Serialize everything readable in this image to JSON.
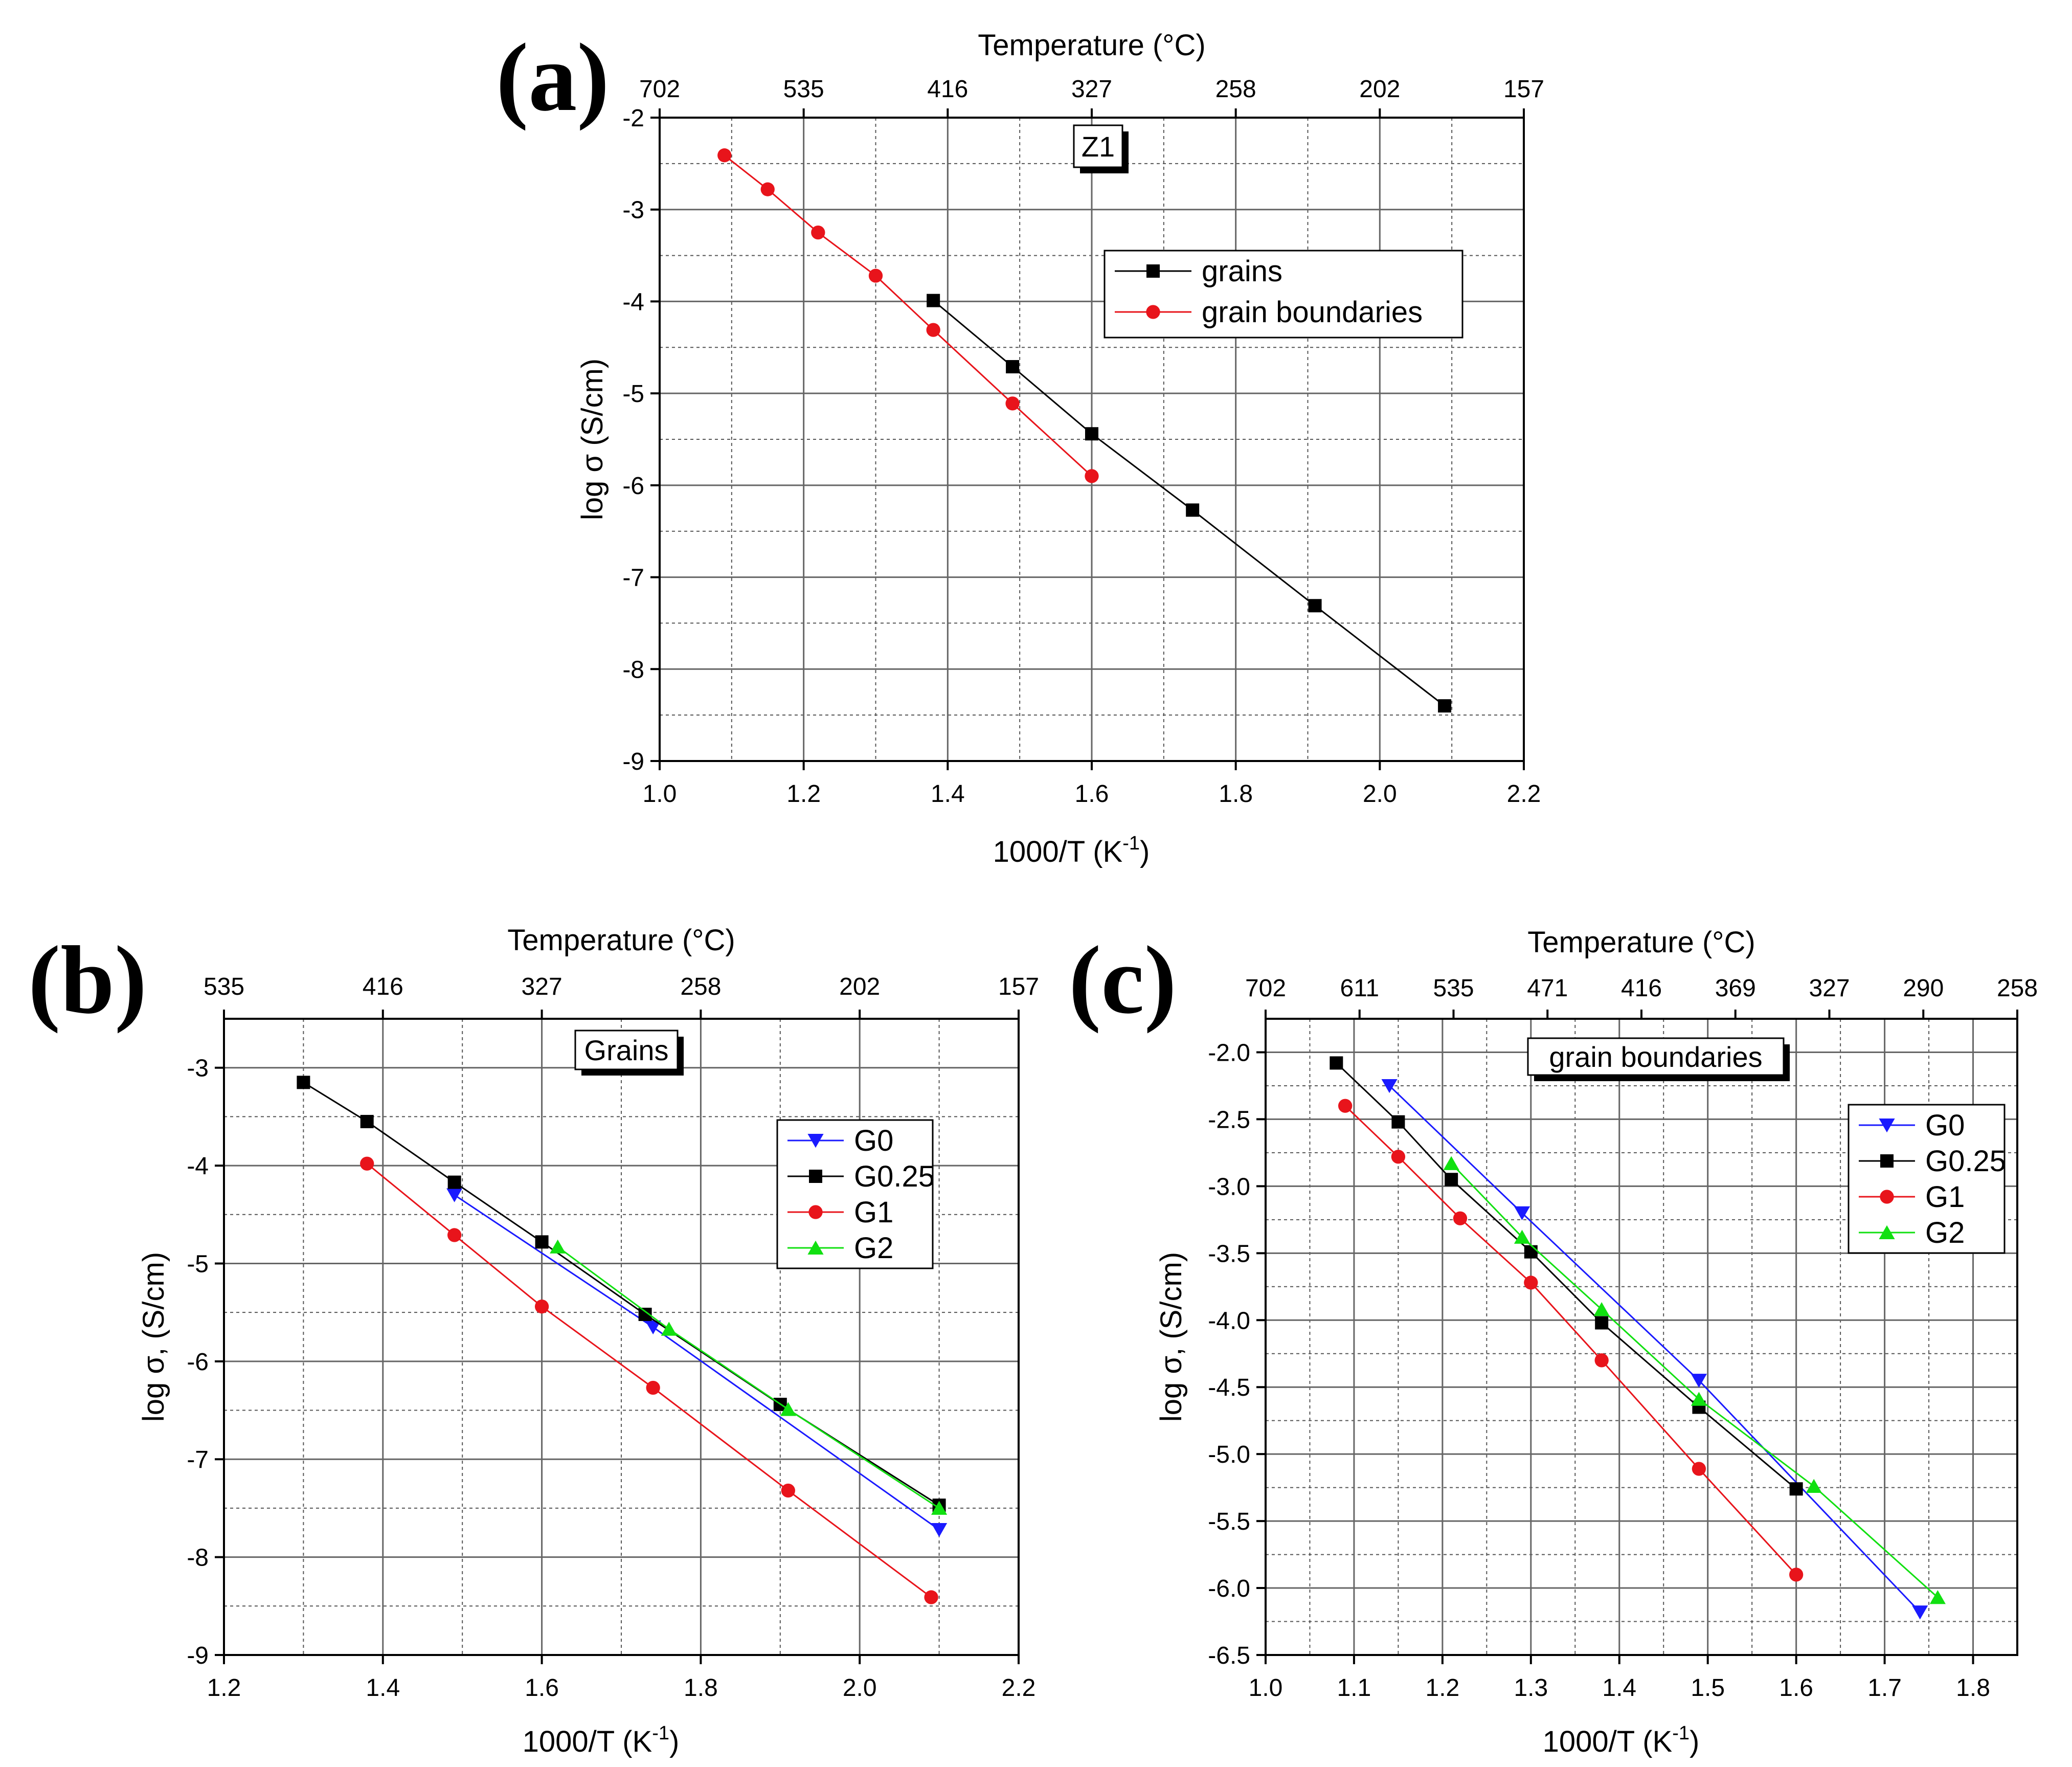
{
  "chart_data": [
    {
      "type": "line",
      "panel": "(a)",
      "title": "Z1",
      "xlabel": "1000/T (K",
      "xlabel_sup": "-1",
      "xlabel_end": ")",
      "ylabel": "log σ (S/cm)",
      "top_axis_label": "Temperature (°C)",
      "xlim": [
        1.0,
        2.2
      ],
      "ylim": [
        -9,
        -2
      ],
      "x_ticks": [
        "1.0",
        "1.2",
        "1.4",
        "1.6",
        "1.8",
        "2.0",
        "2.2"
      ],
      "y_ticks": [
        "-2",
        "-3",
        "-4",
        "-5",
        "-6",
        "-7",
        "-8",
        "-9"
      ],
      "top_ticks": [
        "702",
        "535",
        "416",
        "327",
        "258",
        "202",
        "157"
      ],
      "legend_position": "upper-right",
      "series": [
        {
          "name": "grains",
          "color": "#000000",
          "marker": "square",
          "x": [
            1.38,
            1.49,
            1.6,
            1.74,
            1.91,
            2.09
          ],
          "y": [
            -3.99,
            -4.71,
            -5.44,
            -6.27,
            -7.31,
            -8.4
          ]
        },
        {
          "name": "grain boundaries",
          "color": "#e8141b",
          "marker": "circle",
          "x": [
            1.09,
            1.15,
            1.22,
            1.3,
            1.38,
            1.49,
            1.6
          ],
          "y": [
            -2.41,
            -2.78,
            -3.25,
            -3.72,
            -4.31,
            -5.11,
            -5.9
          ]
        }
      ]
    },
    {
      "type": "line",
      "panel": "(b)",
      "title": "Grains",
      "xlabel": "1000/T (K",
      "xlabel_sup": "-1",
      "xlabel_end": ")",
      "ylabel": "log σ, (S/cm)",
      "top_axis_label": "Temperature (°C)",
      "xlim": [
        1.2,
        2.2
      ],
      "ylim": [
        -9,
        -2.5
      ],
      "x_ticks": [
        "1.2",
        "1.4",
        "1.6",
        "1.8",
        "2.0",
        "2.2"
      ],
      "y_ticks": [
        "-3",
        "-4",
        "-5",
        "-6",
        "-7",
        "-8",
        "-9"
      ],
      "top_ticks": [
        "535",
        "416",
        "327",
        "258",
        "202",
        "157"
      ],
      "legend_position": "upper-right",
      "series": [
        {
          "name": "G0",
          "color": "#1a1aff",
          "marker": "triangle-down",
          "x": [
            1.49,
            1.74,
            2.1
          ],
          "y": [
            -4.3,
            -5.65,
            -7.72
          ]
        },
        {
          "name": "G0.25",
          "color": "#000000",
          "marker": "square",
          "x": [
            1.3,
            1.38,
            1.49,
            1.6,
            1.73,
            1.9,
            2.1
          ],
          "y": [
            -3.15,
            -3.55,
            -4.17,
            -4.78,
            -5.52,
            -6.44,
            -7.47
          ]
        },
        {
          "name": "G1",
          "color": "#e8141b",
          "marker": "circle",
          "x": [
            1.38,
            1.49,
            1.6,
            1.74,
            1.91,
            2.09
          ],
          "y": [
            -3.98,
            -4.71,
            -5.44,
            -6.27,
            -7.32,
            -8.41
          ]
        },
        {
          "name": "G2",
          "color": "#11e011",
          "marker": "triangle-up",
          "x": [
            1.62,
            1.76,
            1.91,
            2.1
          ],
          "y": [
            -4.83,
            -5.67,
            -6.49,
            -7.5
          ]
        }
      ]
    },
    {
      "type": "line",
      "panel": "(c)",
      "title": "grain boundaries",
      "xlabel": "1000/T (K",
      "xlabel_sup": "-1",
      "xlabel_end": ")",
      "ylabel": "log σ, (S/cm)",
      "top_axis_label": "Temperature (°C)",
      "xlim": [
        1.0,
        1.85
      ],
      "ylim": [
        -6.5,
        -1.75
      ],
      "x_ticks": [
        "1.0",
        "1.1",
        "1.2",
        "1.3",
        "1.4",
        "1.5",
        "1.6",
        "1.7",
        "1.8"
      ],
      "y_ticks": [
        "-2.0",
        "-2.5",
        "-3.0",
        "-3.5",
        "-4.0",
        "-4.5",
        "-5.0",
        "-5.5",
        "-6.0",
        "-6.5"
      ],
      "top_ticks": [
        "702",
        "611",
        "535",
        "471",
        "416",
        "369",
        "327",
        "290",
        "258"
      ],
      "legend_position": "upper-right",
      "series": [
        {
          "name": "G0",
          "color": "#1a1aff",
          "marker": "triangle-down",
          "x": [
            1.14,
            1.29,
            1.49,
            1.74
          ],
          "y": [
            -2.25,
            -3.2,
            -4.45,
            -6.18
          ]
        },
        {
          "name": "G0.25",
          "color": "#000000",
          "marker": "square",
          "x": [
            1.08,
            1.15,
            1.21,
            1.3,
            1.38,
            1.49,
            1.6
          ],
          "y": [
            -2.08,
            -2.52,
            -2.95,
            -3.49,
            -4.02,
            -4.65,
            -5.26
          ]
        },
        {
          "name": "G1",
          "color": "#e8141b",
          "marker": "circle",
          "x": [
            1.09,
            1.15,
            1.22,
            1.3,
            1.38,
            1.49,
            1.6
          ],
          "y": [
            -2.4,
            -2.78,
            -3.24,
            -3.72,
            -4.3,
            -5.11,
            -5.9
          ]
        },
        {
          "name": "G2",
          "color": "#11e011",
          "marker": "triangle-up",
          "x": [
            1.21,
            1.29,
            1.38,
            1.49,
            1.62,
            1.76
          ],
          "y": [
            -2.83,
            -3.38,
            -3.92,
            -4.59,
            -5.24,
            -6.07
          ]
        }
      ]
    }
  ]
}
